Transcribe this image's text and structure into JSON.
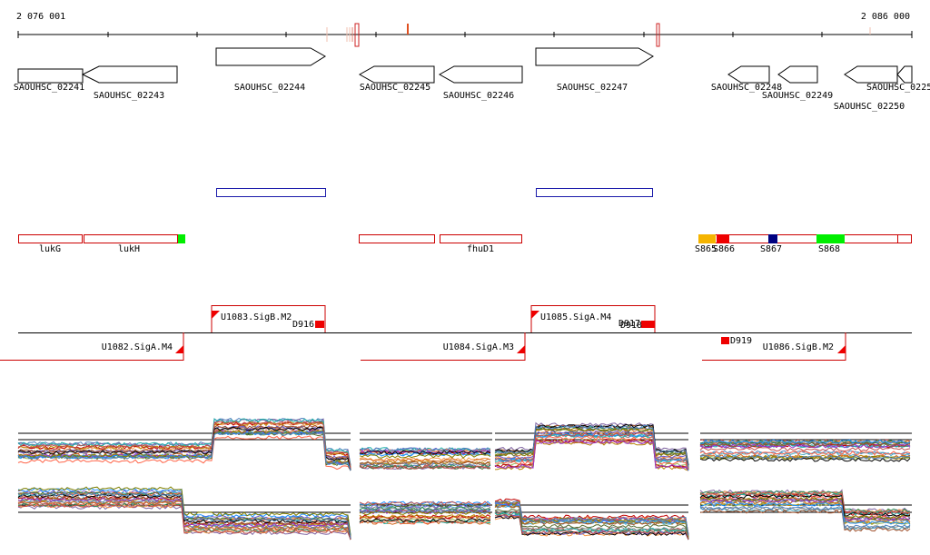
{
  "coordinates": {
    "start": "2 076 001",
    "end": "2 086 000"
  },
  "genes": [
    {
      "name": "SAOUHSC_02241",
      "strand": "-"
    },
    {
      "name": "SAOUHSC_02243",
      "strand": "-"
    },
    {
      "name": "SAOUHSC_02244",
      "strand": "+"
    },
    {
      "name": "SAOUHSC_02245",
      "strand": "-"
    },
    {
      "name": "SAOUHSC_02246",
      "strand": "-"
    },
    {
      "name": "SAOUHSC_02247",
      "strand": "+"
    },
    {
      "name": "SAOUHSC_02248",
      "strand": "-"
    },
    {
      "name": "SAOUHSC_02249",
      "strand": "-"
    },
    {
      "name": "SAOUHSC_02250",
      "strand": "-"
    },
    {
      "name": "SAOUHSC_0225",
      "strand": "-"
    }
  ],
  "gene_symbols": [
    "lukG",
    "lukH",
    "fhuD1"
  ],
  "segments": [
    "S865",
    "S866",
    "S867",
    "S868"
  ],
  "transcripts_forward": [
    "U1083.SigB.M2",
    "U1085.SigA.M4"
  ],
  "transcripts_reverse": [
    "U1082.SigA.M4",
    "U1084.SigA.M3",
    "U1086.SigB.M2"
  ],
  "terminators": [
    "D916",
    "D917",
    "D918",
    "D919"
  ],
  "colors": {
    "gene_outline": "#000000",
    "annotation_outline": "#cc0000",
    "cds_outline": "#1a1aaa",
    "segment_orange": "#f5b400",
    "segment_red": "#ee0000",
    "segment_navy": "#000080",
    "segment_green": "#00ee00"
  }
}
